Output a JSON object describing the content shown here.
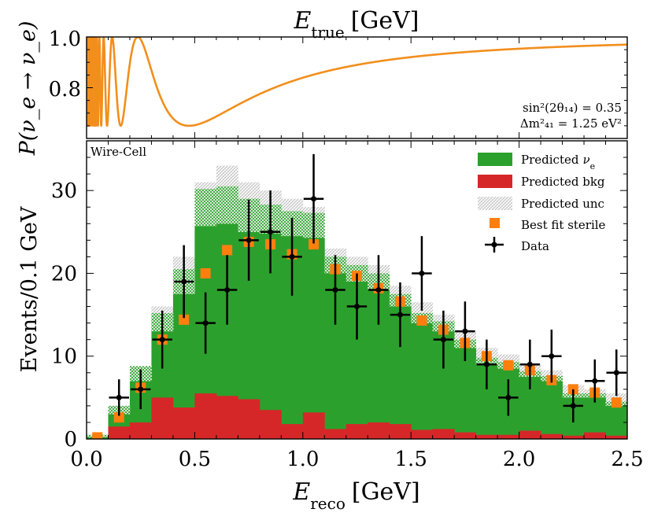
{
  "top_panel": {
    "title_var": "E",
    "title_sub": "true",
    "title_unit": "[GeV]",
    "ylabel": "P(ν_e → ν_e)",
    "yticks": [
      "0.8",
      "1.0"
    ],
    "param_line1": "sin²(2θ₁₄) = 0.35",
    "param_line2": "Δm²₄₁ = 1.25 eV²",
    "curve_color": "#f28e1c"
  },
  "chart_data": [
    {
      "type": "line",
      "title": "E_true [GeV]",
      "ylabel": "P(ν_e → ν_e)",
      "ylim": [
        0.6,
        1.0
      ],
      "xlim": [
        0.0,
        2.5
      ],
      "sin2_2theta14": 0.35,
      "dm2_41_eV2": 1.25,
      "series": [
        {
          "name": "P(νe→νe)",
          "color": "#f28e1c"
        }
      ]
    },
    {
      "type": "bar",
      "xlabel": "E_reco [GeV]",
      "ylabel": "Events/0.1 GeV",
      "xlim": [
        0.0,
        2.5
      ],
      "ylim": [
        0,
        36
      ],
      "bin_width": 0.1,
      "bin_centers": [
        0.05,
        0.15,
        0.25,
        0.35,
        0.45,
        0.55,
        0.65,
        0.75,
        0.85,
        0.95,
        1.05,
        1.15,
        1.25,
        1.35,
        1.45,
        1.55,
        1.65,
        1.75,
        1.85,
        1.95,
        2.05,
        2.15,
        2.25,
        2.35,
        2.45
      ],
      "label": "Wire-Cell",
      "legend_position": "top-right",
      "series": [
        {
          "name": "Predicted νe",
          "color": "#2ca02c",
          "values": [
            0.2,
            3.0,
            7.0,
            13.0,
            17.5,
            25.7,
            26.0,
            25.0,
            24.8,
            24.5,
            24.3,
            20.0,
            19.0,
            18.0,
            16.0,
            14.0,
            13.0,
            11.0,
            9.0,
            8.5,
            7.5,
            7.0,
            5.0,
            5.0,
            4.0
          ]
        },
        {
          "name": "Predicted bkg",
          "color": "#d62728",
          "values": [
            0.0,
            1.5,
            2.0,
            5.0,
            3.8,
            5.5,
            5.2,
            4.8,
            3.5,
            1.8,
            3.2,
            1.2,
            1.8,
            2.0,
            1.8,
            1.1,
            1.2,
            0.8,
            0.5,
            0.5,
            1.0,
            0.6,
            0.4,
            0.8,
            0.4
          ]
        },
        {
          "name": "Predicted unc",
          "color": "#9a9a9a",
          "upper": [
            0.5,
            4.0,
            8.8,
            16.0,
            22.0,
            31.0,
            33.0,
            31.0,
            30.0,
            29.0,
            28.0,
            23.0,
            22.0,
            21.0,
            18.5,
            16.5,
            15.0,
            13.0,
            11.0,
            10.2,
            9.0,
            8.3,
            6.5,
            6.0,
            5.5
          ],
          "green_extra": [
            0.3,
            1.0,
            1.8,
            2.2,
            3.0,
            4.5,
            4.5,
            4.0,
            3.5,
            3.0,
            3.0,
            2.0,
            2.0,
            2.0,
            1.5,
            1.2,
            1.2,
            1.0,
            0.8,
            0.8,
            0.7,
            0.6,
            0.5,
            0.5,
            0.5
          ]
        },
        {
          "name": "Best fit sterile",
          "color": "#ff7f0e",
          "values": [
            0.2,
            2.6,
            6.2,
            12.0,
            14.4,
            20.0,
            22.8,
            23.8,
            23.5,
            22.3,
            23.5,
            20.5,
            19.7,
            18.2,
            16.6,
            14.3,
            13.2,
            11.6,
            10.0,
            8.9,
            8.3,
            7.1,
            6.0,
            5.6,
            4.4
          ]
        },
        {
          "name": "Data",
          "color": "#000000",
          "values": [
            null,
            5,
            6,
            12,
            19,
            14,
            18,
            24,
            25,
            22,
            29,
            18,
            16,
            18,
            15,
            20,
            12,
            13,
            9,
            5,
            9,
            10,
            4,
            7,
            8
          ],
          "errors": [
            null,
            2.2,
            2.4,
            3.5,
            4.4,
            3.7,
            4.2,
            4.9,
            5.0,
            4.7,
            5.4,
            4.2,
            4.0,
            4.2,
            3.9,
            4.5,
            3.5,
            3.6,
            3.0,
            2.2,
            3.0,
            3.2,
            2.0,
            2.6,
            2.8
          ]
        }
      ],
      "xticks": [
        "0.0",
        "0.5",
        "1.0",
        "1.5",
        "2.0",
        "2.5"
      ],
      "yticks": [
        "0",
        "10",
        "20",
        "30"
      ]
    }
  ],
  "legend": {
    "nue": "Predicted",
    "nue_sym": "ν",
    "nue_sub": "e",
    "bkg": "Predicted bkg",
    "unc": "Predicted unc",
    "sterile": "Best fit sterile",
    "data": "Data"
  },
  "bottom_panel": {
    "label": "Wire-Cell",
    "xlabel_var": "E",
    "xlabel_sub": "reco",
    "xlabel_unit": "[GeV]",
    "ylabel": "Events/0.1 GeV"
  }
}
